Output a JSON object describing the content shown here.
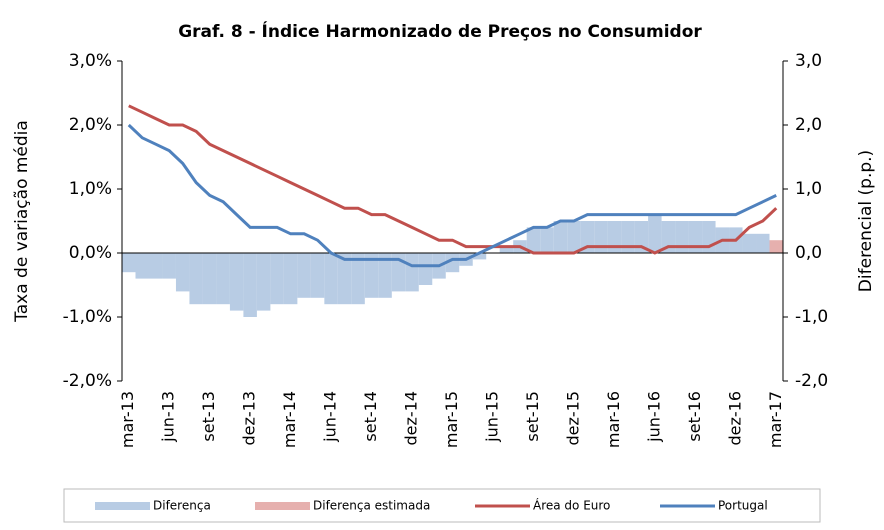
{
  "chart_data": {
    "type": "combo",
    "title": "Graf. 8 - Índice Harmonizado de Preços no Consumidor",
    "ylabel": "Taxa de variação média",
    "y2label": "Diferencial (p.p.)",
    "categories": [
      "mar-13",
      null,
      null,
      "jun-13",
      null,
      null,
      "set-13",
      null,
      null,
      "dez-13",
      null,
      null,
      "mar-14",
      null,
      null,
      "jun-14",
      null,
      null,
      "set-14",
      null,
      null,
      "dez-14",
      null,
      null,
      "mar-15",
      null,
      null,
      "jun-15",
      null,
      null,
      "set-15",
      null,
      null,
      "dez-15",
      null,
      null,
      "mar-16",
      null,
      null,
      "jun-16",
      null,
      null,
      "set-16",
      null,
      null,
      "dez-16",
      null,
      null,
      "mar-17"
    ],
    "ylim": [
      -2,
      3
    ],
    "yticks": [
      {
        "value": 3,
        "label": "3,0%"
      },
      {
        "value": 2,
        "label": "2,0%"
      },
      {
        "value": 1,
        "label": "1,0%"
      },
      {
        "value": 0,
        "label": "0,0%"
      },
      {
        "value": -1,
        "label": "-1,0%"
      },
      {
        "value": -2,
        "label": "-2,0%"
      }
    ],
    "y2lim": [
      -2,
      3
    ],
    "y2ticks": [
      {
        "value": 3,
        "label": "3,0"
      },
      {
        "value": 2,
        "label": "2,0"
      },
      {
        "value": 1,
        "label": "1,0"
      },
      {
        "value": 0,
        "label": "0,0"
      },
      {
        "value": -1,
        "label": "-1,0"
      },
      {
        "value": -2,
        "label": "-2,0"
      }
    ],
    "series": [
      {
        "name": "Diferença",
        "type": "bar",
        "axis": "y2",
        "color": "#b8cce4",
        "values": [
          -0.3,
          -0.4,
          -0.4,
          -0.4,
          -0.6,
          -0.8,
          -0.8,
          -0.8,
          -0.9,
          -1.0,
          -0.9,
          -0.8,
          -0.8,
          -0.7,
          -0.7,
          -0.8,
          -0.8,
          -0.8,
          -0.7,
          -0.7,
          -0.6,
          -0.6,
          -0.5,
          -0.4,
          -0.3,
          -0.2,
          -0.1,
          0.0,
          0.1,
          0.2,
          0.4,
          0.4,
          0.5,
          0.5,
          0.5,
          0.5,
          0.5,
          0.5,
          0.5,
          0.6,
          0.5,
          0.5,
          0.5,
          0.5,
          0.4,
          0.4,
          0.3,
          0.3,
          null
        ]
      },
      {
        "name": "Diferença estimada",
        "type": "bar",
        "axis": "y2",
        "color": "#e6b0ae",
        "values": [
          null,
          null,
          null,
          null,
          null,
          null,
          null,
          null,
          null,
          null,
          null,
          null,
          null,
          null,
          null,
          null,
          null,
          null,
          null,
          null,
          null,
          null,
          null,
          null,
          null,
          null,
          null,
          null,
          null,
          null,
          null,
          null,
          null,
          null,
          null,
          null,
          null,
          null,
          null,
          null,
          null,
          null,
          null,
          null,
          null,
          null,
          null,
          null,
          0.2
        ]
      },
      {
        "name": "Área do Euro",
        "type": "line",
        "color": "#c0504d",
        "values": [
          2.3,
          2.2,
          2.1,
          2.0,
          2.0,
          1.9,
          1.7,
          1.6,
          1.5,
          1.4,
          1.3,
          1.2,
          1.1,
          1.0,
          0.9,
          0.8,
          0.7,
          0.7,
          0.6,
          0.6,
          0.5,
          0.4,
          0.3,
          0.2,
          0.2,
          0.1,
          0.1,
          0.1,
          0.1,
          0.1,
          0.0,
          0.0,
          0.0,
          0.0,
          0.1,
          0.1,
          0.1,
          0.1,
          0.1,
          0.0,
          0.1,
          0.1,
          0.1,
          0.1,
          0.2,
          0.2,
          0.4,
          0.5,
          0.7
        ]
      },
      {
        "name": "Portugal",
        "type": "line",
        "color": "#4f81bd",
        "values": [
          2.0,
          1.8,
          1.7,
          1.6,
          1.4,
          1.1,
          0.9,
          0.8,
          0.6,
          0.4,
          0.4,
          0.4,
          0.3,
          0.3,
          0.2,
          0.0,
          -0.1,
          -0.1,
          -0.1,
          -0.1,
          -0.1,
          -0.2,
          -0.2,
          -0.2,
          -0.1,
          -0.1,
          0.0,
          0.1,
          0.2,
          0.3,
          0.4,
          0.4,
          0.5,
          0.5,
          0.6,
          0.6,
          0.6,
          0.6,
          0.6,
          0.6,
          0.6,
          0.6,
          0.6,
          0.6,
          0.6,
          0.6,
          0.7,
          0.8,
          0.9
        ]
      }
    ]
  }
}
